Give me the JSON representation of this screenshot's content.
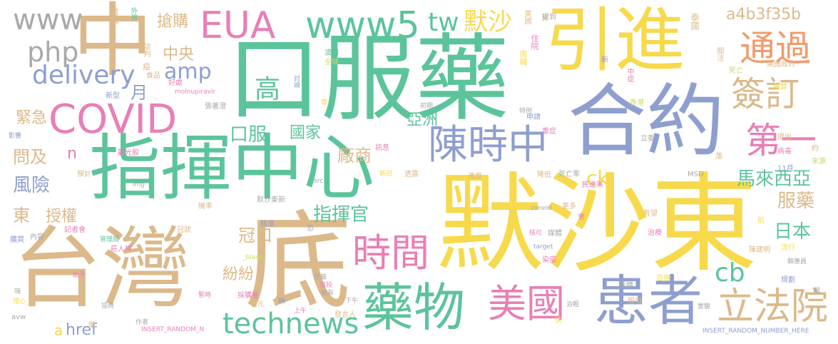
{
  "palette": {
    "tan": "#dcb98a",
    "gold": "#f7d94c",
    "green": "#5cc49a",
    "blue": "#8e9fcf",
    "pink": "#e87fb6",
    "orange": "#f29a6b",
    "gray": "#a9a9a9",
    "lime": "#c7d96a"
  },
  "words": [
    {
      "text": "默沙東",
      "color": "gold"
    },
    {
      "text": "口服藥",
      "color": "green"
    },
    {
      "text": "指揮中心",
      "color": "green"
    },
    {
      "text": "台灣",
      "color": "tan"
    },
    {
      "text": "底",
      "color": "tan"
    },
    {
      "text": "中",
      "color": "tan"
    },
    {
      "text": "引進",
      "color": "gold"
    },
    {
      "text": "合約",
      "color": "blue"
    },
    {
      "text": "患者",
      "color": "blue"
    },
    {
      "text": "藥物",
      "color": "green"
    },
    {
      "text": "COVID",
      "color": "pink"
    },
    {
      "text": "陳時中",
      "color": "blue"
    },
    {
      "text": "美國",
      "color": "pink"
    },
    {
      "text": "立法院",
      "color": "tan"
    },
    {
      "text": "時間",
      "color": "pink"
    },
    {
      "text": "www5",
      "color": "green"
    },
    {
      "text": "EUA",
      "color": "pink"
    },
    {
      "text": "通過",
      "color": "orange"
    },
    {
      "text": "簽訂",
      "color": "tan"
    },
    {
      "text": "第一",
      "color": "pink"
    },
    {
      "text": "technews",
      "color": "green"
    },
    {
      "text": "delivery",
      "color": "blue"
    },
    {
      "text": "www",
      "color": "gray"
    },
    {
      "text": "php",
      "color": "gray"
    },
    {
      "text": "tw",
      "color": "green"
    },
    {
      "text": "默沙",
      "color": "gold"
    },
    {
      "text": "amp",
      "color": "blue"
    },
    {
      "text": "a4b3f35b",
      "color": "tan"
    },
    {
      "text": "高",
      "color": "green"
    },
    {
      "text": "cb",
      "color": "green"
    },
    {
      "text": "ck",
      "color": "gold"
    },
    {
      "text": "馬來西亞",
      "color": "green"
    },
    {
      "text": "服藥",
      "color": "tan"
    },
    {
      "text": "日本",
      "color": "green"
    },
    {
      "text": "指揮官",
      "color": "green"
    },
    {
      "text": "冠口",
      "color": "tan"
    },
    {
      "text": "口服",
      "color": "green"
    },
    {
      "text": "國家",
      "color": "green"
    },
    {
      "text": "廠商",
      "color": "tan"
    },
    {
      "text": "亞洲",
      "color": "green"
    },
    {
      "text": "搶購",
      "color": "tan"
    },
    {
      "text": "中央",
      "color": "tan"
    },
    {
      "text": "月",
      "color": "blue"
    },
    {
      "text": "緊急",
      "color": "tan"
    },
    {
      "text": "問及",
      "color": "tan"
    },
    {
      "text": "風險",
      "color": "blue"
    },
    {
      "text": "東",
      "color": "tan"
    },
    {
      "text": "授權",
      "color": "tan"
    },
    {
      "text": "n",
      "color": "pink"
    },
    {
      "text": "紛紛",
      "color": "tan"
    },
    {
      "text": "href",
      "color": "blue"
    },
    {
      "text": "a",
      "color": "gold"
    },
    {
      "text": "搶購",
      "color": "tan"
    },
    {
      "text": "外界",
      "color": "green"
    },
    {
      "text": "英國",
      "color": "tan"
    },
    {
      "text": "外",
      "color": "tan"
    },
    {
      "text": "泰國",
      "color": "tan"
    },
    {
      "text": "關注",
      "color": "tan"
    },
    {
      "text": "死亡",
      "color": "lime"
    },
    {
      "text": "美國政府",
      "color": "tan"
    },
    {
      "text": "住院",
      "color": "pink"
    },
    {
      "text": "南韓",
      "color": "gold"
    },
    {
      "text": "澳洲",
      "color": "green"
    },
    {
      "text": "全球",
      "color": "lime"
    },
    {
      "text": "談判",
      "color": "tan"
    },
    {
      "text": "疫",
      "color": "tan"
    },
    {
      "text": "食品",
      "color": "tan"
    },
    {
      "text": "好處",
      "color": "pink"
    },
    {
      "text": "新型",
      "color": "blue"
    },
    {
      "text": "molnupiravir",
      "color": "pink"
    },
    {
      "text": "張著澄",
      "color": "gray"
    },
    {
      "text": "討論",
      "color": "blue"
    },
    {
      "text": "預算",
      "color": "gold"
    },
    {
      "text": "香港",
      "color": "lime"
    },
    {
      "text": "中症",
      "color": "pink"
    },
    {
      "text": "影響",
      "color": "blue"
    },
    {
      "text": "觀光股",
      "color": "pink"
    },
    {
      "text": "預計",
      "color": "tan"
    },
    {
      "text": "img",
      "color": "gray"
    },
    {
      "text": "src",
      "color": "blue"
    },
    {
      "text": "透露",
      "color": "tan"
    },
    {
      "text": "新冠",
      "color": "gold"
    },
    {
      "text": "訊息",
      "color": "pink"
    },
    {
      "text": "病毒",
      "color": "pink"
    },
    {
      "text": "約",
      "color": "tan"
    },
    {
      "text": "來源",
      "color": "lime"
    },
    {
      "text": "MSD",
      "color": "gray"
    },
    {
      "text": "死亡率",
      "color": "gray"
    },
    {
      "text": "降低",
      "color": "tan"
    },
    {
      "text": "進度",
      "color": "tan"
    },
    {
      "text": "民進黨",
      "color": "pink"
    },
    {
      "text": "默沙東新",
      "color": "gray"
    },
    {
      "text": "機率",
      "color": "tan"
    },
    {
      "text": "核准",
      "color": "blue"
    },
    {
      "text": "記者會",
      "color": "pink"
    },
    {
      "text": "內容",
      "color": "gray"
    },
    {
      "text": "購買",
      "color": "blue"
    },
    {
      "text": "莊人祥",
      "color": "pink"
    },
    {
      "text": "管理局",
      "color": "green"
    },
    {
      "text": "冠狀",
      "color": "tan"
    },
    {
      "text": "_blank",
      "color": "lime"
    },
    {
      "text": "target",
      "color": "blue"
    },
    {
      "text": "zoneid",
      "color": "gray"
    },
    {
      "text": "更多",
      "color": "tan"
    },
    {
      "text": "有望",
      "color": "tan"
    },
    {
      "text": "治療",
      "color": "pink"
    },
    {
      "text": "陳建明",
      "color": "tan"
    },
    {
      "text": "流行",
      "color": "gold"
    },
    {
      "text": "賴惠員",
      "color": "gray"
    },
    {
      "text": "規劃",
      "color": "blue"
    },
    {
      "text": "百億",
      "color": "gold"
    },
    {
      "text": "染疫",
      "color": "pink"
    },
    {
      "text": "給予",
      "color": "pink"
    },
    {
      "text": "暫時",
      "color": "pink"
    },
    {
      "text": "採購量",
      "color": "pink"
    },
    {
      "text": "美元",
      "color": "tan"
    },
    {
      "text": "上午",
      "color": "pink"
    },
    {
      "text": "發言人",
      "color": "tan"
    },
    {
      "text": "協商",
      "color": "gray"
    },
    {
      "text": "作者",
      "color": "gray"
    },
    {
      "text": "INSERT_RANDOM_N",
      "color": "pink"
    },
    {
      "text": "INSERT_RANDOM_NUMBER_HERE",
      "color": "blue"
    },
    {
      "text": "avw",
      "color": "gray"
    },
    {
      "text": "嗨",
      "color": "gray"
    },
    {
      "text": "理心",
      "color": "gold"
    },
    {
      "text": "下午",
      "color": "gray"
    },
    {
      "text": "億",
      "color": "gold"
    },
    {
      "text": "初期",
      "color": "gray"
    },
    {
      "text": "特例",
      "color": "gray"
    },
    {
      "text": "申請",
      "color": "blue"
    },
    {
      "text": "重症",
      "color": "pink"
    },
    {
      "text": "立委",
      "color": "gray"
    },
    {
      "text": "提出",
      "color": "tan"
    },
    {
      "text": "11月",
      "color": "blue"
    },
    {
      "text": "落",
      "color": "tan"
    },
    {
      "text": "新",
      "color": "blue"
    },
    {
      "text": "媒體",
      "color": "gray"
    },
    {
      "text": "採購",
      "color": "gray"
    },
    {
      "text": "服用",
      "color": "tan"
    },
    {
      "text": "楊",
      "color": "gray"
    },
    {
      "text": "恐",
      "color": "gray"
    },
    {
      "text": "提到",
      "color": "gray"
    },
    {
      "text": "會",
      "color": "pink"
    },
    {
      "text": "前",
      "color": "gold"
    },
    {
      "text": "快",
      "color": "gold"
    },
    {
      "text": "稱",
      "color": "blue"
    },
    {
      "text": "擁有",
      "color": "gray"
    },
    {
      "text": "標籤",
      "color": "gray"
    },
    {
      "text": "階段",
      "color": "pink"
    },
    {
      "text": "核可",
      "color": "pink"
    },
    {
      "text": "治輕",
      "color": "gray"
    },
    {
      "text": "實驗",
      "color": "gray"
    },
    {
      "text": "購",
      "color": "tan"
    }
  ]
}
